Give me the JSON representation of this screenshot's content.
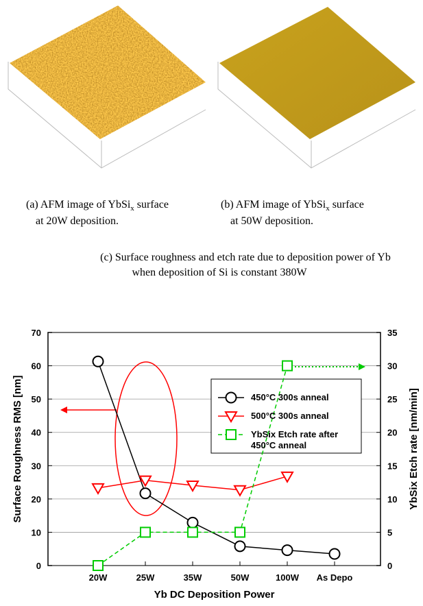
{
  "captions": {
    "a": {
      "prefix": "(a) AFM image of YbSi",
      "sub": "x",
      "suffix": " surface",
      "line2": "at 20W deposition."
    },
    "b": {
      "prefix": "(b) AFM image of YbSi",
      "sub": "x",
      "suffix": " surface",
      "line2": "at 50W deposition."
    },
    "c": {
      "line1": "(c) Surface roughness and etch rate due to deposition power of Yb",
      "line2": "when deposition of Si is constant 380W"
    }
  },
  "chart_data": {
    "type": "line",
    "categories": [
      "20W",
      "25W",
      "35W",
      "50W",
      "100W",
      "As Depo"
    ],
    "x_label": "Yb DC Deposition Power",
    "y_label": "Surface Roughness RMS [nm]",
    "y2_label": "YbSix Etch rate [nm/min]",
    "ylim": [
      0,
      70
    ],
    "yticks": [
      0,
      10,
      20,
      30,
      40,
      50,
      60,
      70
    ],
    "y2lim": [
      0,
      35
    ],
    "y2ticks": [
      0,
      5,
      10,
      15,
      20,
      25,
      30,
      35
    ],
    "series": [
      {
        "name": "450°C 300s anneal",
        "color": "#000000",
        "marker": "circle",
        "values": [
          61.3,
          21.7,
          12.9,
          5.8,
          4.6,
          3.5
        ]
      },
      {
        "name": "500°C 300s anneal",
        "color": "#ff0000",
        "marker": "triangle-down",
        "values": [
          23.3,
          25.6,
          24.1,
          22.7,
          26.8,
          null
        ]
      },
      {
        "name": "YbSix Etch rate after 450°C anneal",
        "color": "#00cc00",
        "marker": "square",
        "axis": "y2",
        "dashed": true,
        "values": [
          0,
          5,
          5,
          5,
          30,
          null
        ]
      }
    ]
  }
}
